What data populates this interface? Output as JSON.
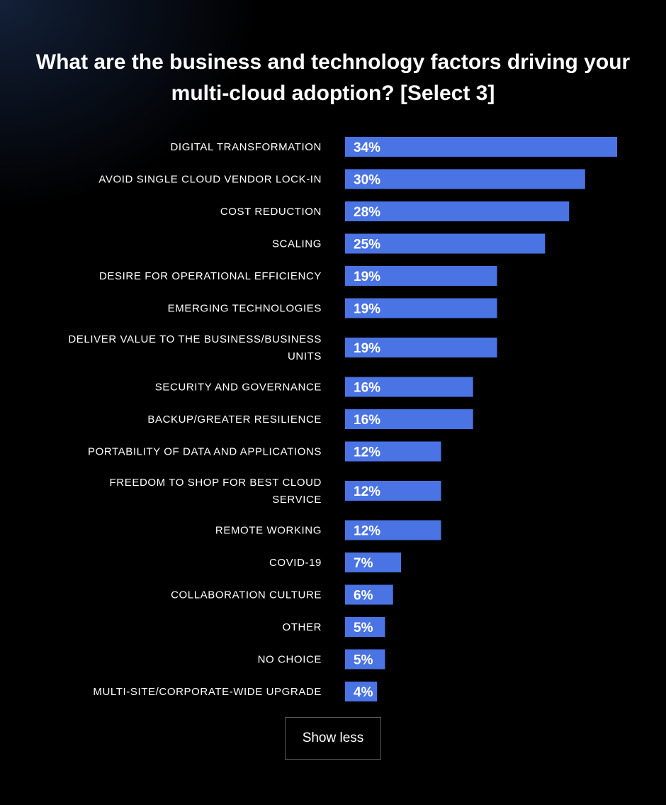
{
  "chart_data": {
    "type": "bar",
    "orientation": "horizontal",
    "title": "What are the business and technology factors driving your multi-cloud adoption? [Select 3]",
    "categories": [
      "DIGITAL TRANSFORMATION",
      "AVOID SINGLE CLOUD VENDOR LOCK-IN",
      "COST REDUCTION",
      "SCALING",
      "DESIRE FOR OPERATIONAL EFFICIENCY",
      "EMERGING TECHNOLOGIES",
      "DELIVER VALUE TO THE BUSINESS/BUSINESS UNITS",
      "SECURITY AND GOVERNANCE",
      "BACKUP/GREATER RESILIENCE",
      "PORTABILITY OF DATA AND APPLICATIONS",
      "FREEDOM TO SHOP FOR BEST CLOUD SERVICE",
      "REMOTE WORKING",
      "COVID-19",
      "COLLABORATION CULTURE",
      "OTHER",
      "NO CHOICE",
      "MULTI-SITE/CORPORATE-WIDE UPGRADE"
    ],
    "values": [
      34,
      30,
      28,
      25,
      19,
      19,
      19,
      16,
      16,
      12,
      12,
      12,
      7,
      6,
      5,
      5,
      4
    ],
    "value_labels": [
      "34%",
      "30%",
      "28%",
      "25%",
      "19%",
      "19%",
      "19%",
      "16%",
      "16%",
      "12%",
      "12%",
      "12%",
      "7%",
      "6%",
      "5%",
      "5%",
      "4%"
    ],
    "unit": "%",
    "xlabel": "",
    "ylabel": "",
    "xlim": [
      0,
      34
    ],
    "grid": false,
    "legend": "none",
    "bar_color": "#4a73e3"
  },
  "controls": {
    "show_less_label": "Show less"
  },
  "colors": {
    "background": "#000000",
    "text": "#ffffff",
    "accent": "#4a73e3"
  }
}
